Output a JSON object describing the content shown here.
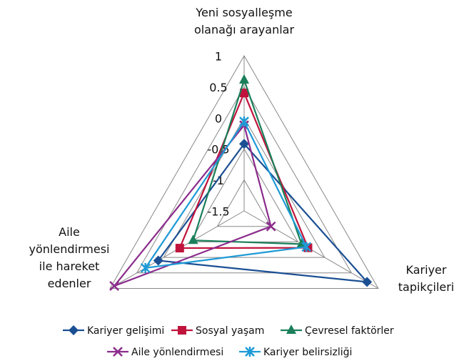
{
  "chart_data": {
    "type": "radar",
    "categories": [
      "Yeni sosyalleşme\nolanağı arayanlar",
      "Kariyer\ntapikçileri",
      "Aile\nyönlendirmesi\nile hareket\nedenler"
    ],
    "ylim": [
      -1.5,
      1
    ],
    "yticks": [
      -1.5,
      -1,
      -0.5,
      0,
      0.5,
      1
    ],
    "grid": true,
    "series": [
      {
        "name": "Kariyer gelişimi",
        "color": "#1b4f93",
        "marker": "diamond",
        "values": [
          -0.42,
          0.79,
          0.1
        ]
      },
      {
        "name": "Sosyal yaşam",
        "color": "#c0143c",
        "marker": "square",
        "values": [
          0.4,
          -0.31,
          -0.3
        ]
      },
      {
        "name": "Çevresel faktörler",
        "color": "#1a7f5a",
        "marker": "triangle",
        "values": [
          0.61,
          -0.43,
          -0.55
        ]
      },
      {
        "name": "Aile yönlendirmesi",
        "color": "#8b2c8c",
        "marker": "x",
        "values": [
          -0.12,
          -1.0,
          0.92
        ]
      },
      {
        "name": "Kariyer belirsizliği",
        "color": "#1e9ad6",
        "marker": "star",
        "values": [
          -0.06,
          -0.34,
          0.34
        ]
      }
    ],
    "legend": "bottom"
  }
}
